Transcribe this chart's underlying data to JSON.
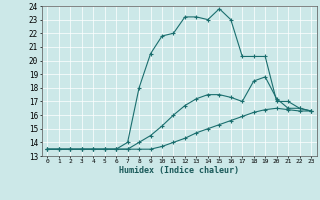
{
  "xlabel": "Humidex (Indice chaleur)",
  "xlim": [
    -0.5,
    23.5
  ],
  "ylim": [
    13,
    24
  ],
  "yticks": [
    13,
    14,
    15,
    16,
    17,
    18,
    19,
    20,
    21,
    22,
    23,
    24
  ],
  "xticks": [
    0,
    1,
    2,
    3,
    4,
    5,
    6,
    7,
    8,
    9,
    10,
    11,
    12,
    13,
    14,
    15,
    16,
    17,
    18,
    19,
    20,
    21,
    22,
    23
  ],
  "bg_color": "#cce8e8",
  "line_color": "#1a6e6e",
  "lines": [
    {
      "x": [
        0,
        1,
        2,
        3,
        4,
        5,
        6,
        7,
        8,
        9,
        10,
        11,
        12,
        13,
        14,
        15,
        16,
        17,
        18,
        19,
        20,
        21,
        22,
        23
      ],
      "y": [
        13.5,
        13.5,
        13.5,
        13.5,
        13.5,
        13.5,
        13.5,
        13.5,
        13.5,
        13.5,
        13.7,
        14.0,
        14.3,
        14.7,
        15.0,
        15.3,
        15.6,
        15.9,
        16.2,
        16.4,
        16.5,
        16.4,
        16.3,
        16.3
      ]
    },
    {
      "x": [
        0,
        1,
        2,
        3,
        4,
        5,
        6,
        7,
        8,
        9,
        10,
        11,
        12,
        13,
        14,
        15,
        16,
        17,
        18,
        19,
        20,
        21,
        22,
        23
      ],
      "y": [
        13.5,
        13.5,
        13.5,
        13.5,
        13.5,
        13.5,
        13.5,
        13.5,
        14.0,
        14.5,
        15.2,
        16.0,
        16.7,
        17.2,
        17.5,
        17.5,
        17.3,
        17.0,
        18.5,
        18.8,
        17.2,
        16.5,
        16.5,
        16.3
      ]
    },
    {
      "x": [
        0,
        1,
        2,
        3,
        4,
        5,
        6,
        7,
        8,
        9,
        10,
        11,
        12,
        13,
        14,
        15,
        16,
        17,
        18,
        19,
        20,
        21,
        22,
        23
      ],
      "y": [
        13.5,
        13.5,
        13.5,
        13.5,
        13.5,
        13.5,
        13.5,
        14.0,
        18.0,
        20.5,
        21.8,
        22.0,
        23.2,
        23.2,
        23.0,
        23.8,
        23.0,
        20.3,
        20.3,
        20.3,
        17.0,
        17.0,
        16.5,
        16.3
      ]
    }
  ]
}
